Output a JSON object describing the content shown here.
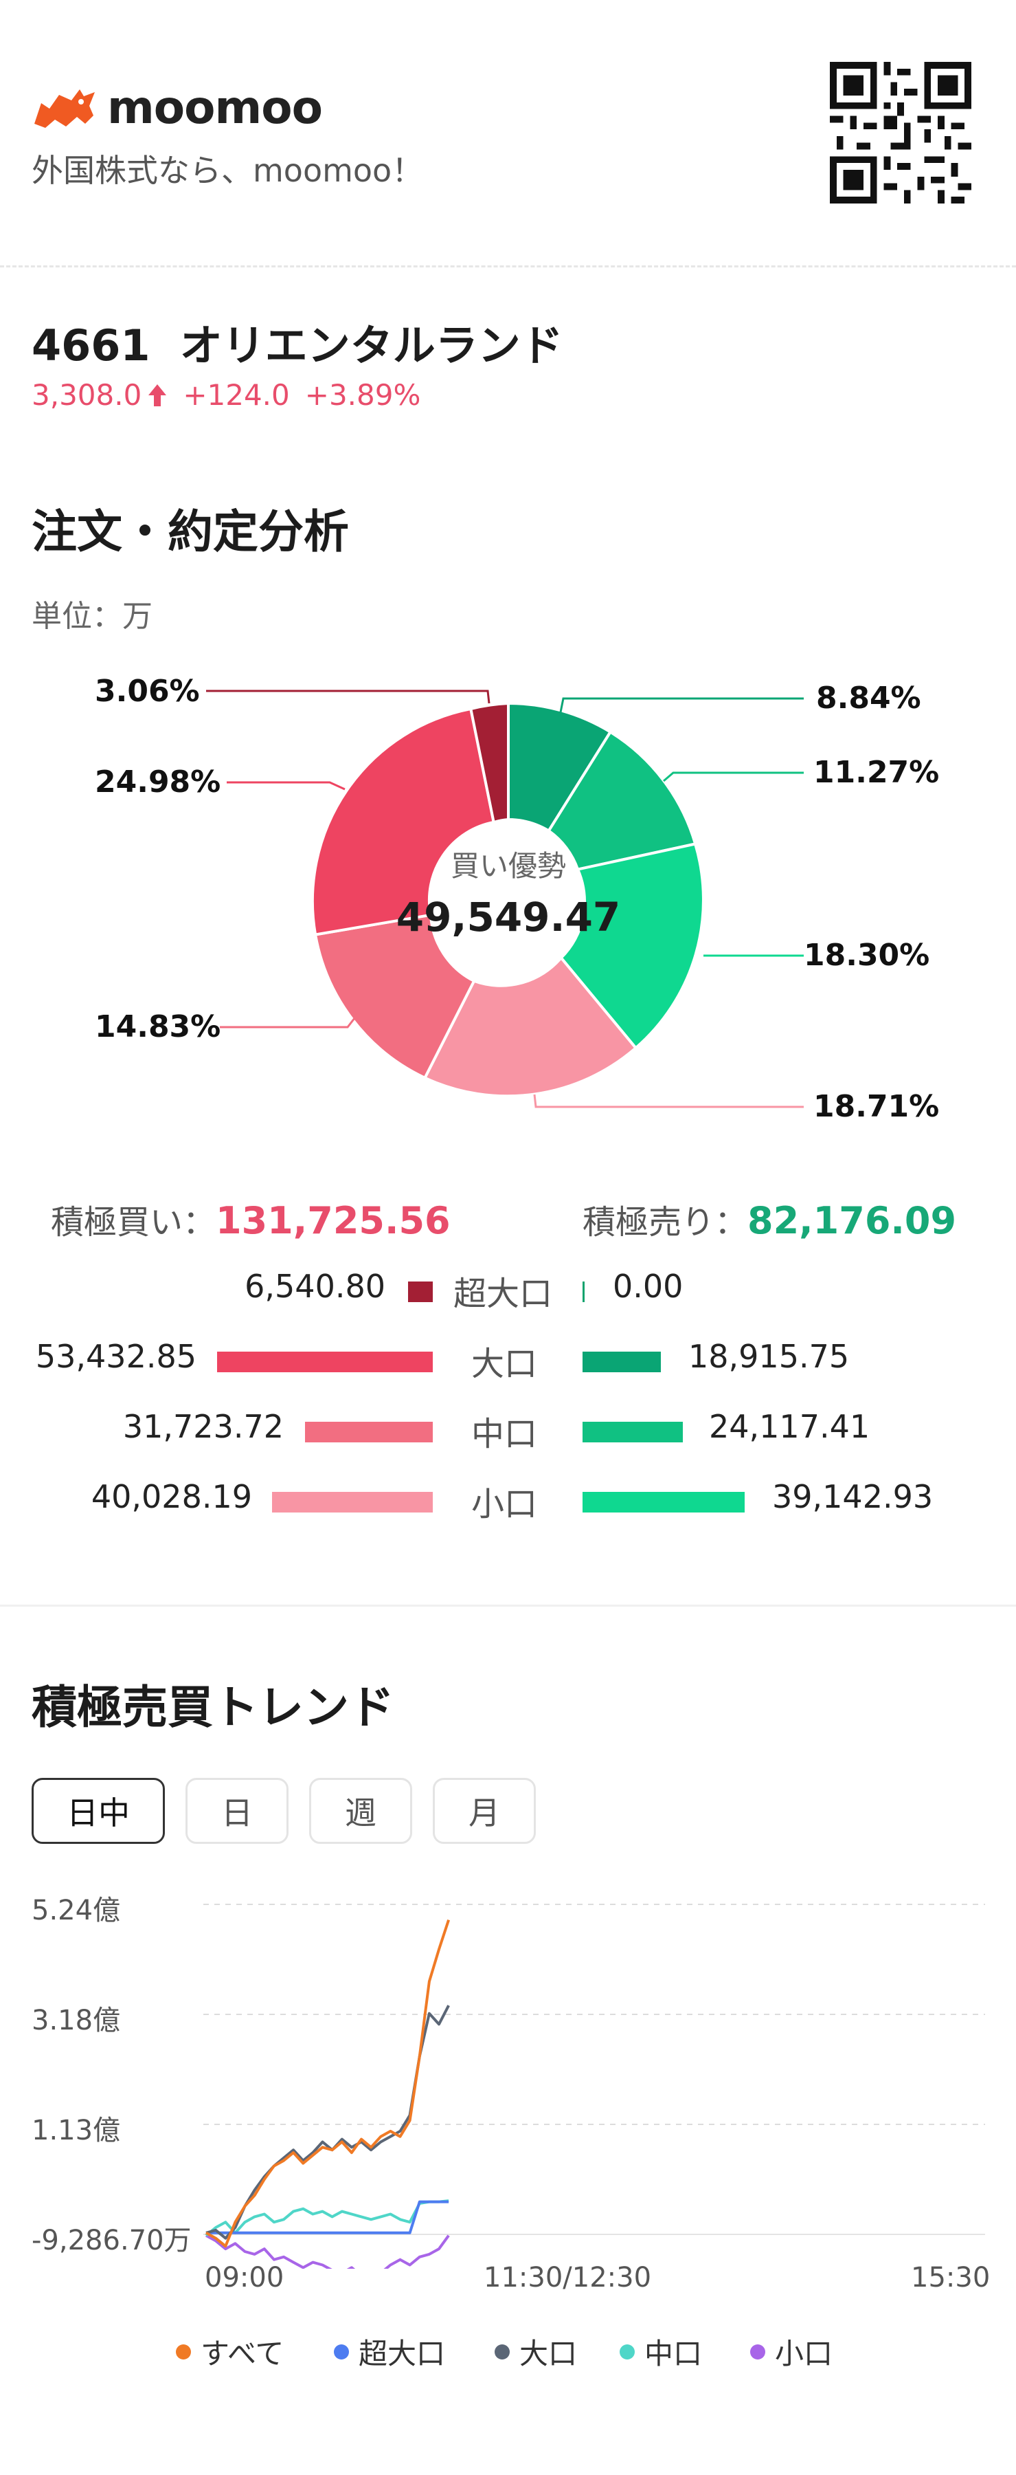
{
  "header": {
    "brand": "moomoo",
    "tagline": "外国株式なら、moomoo！"
  },
  "stock": {
    "code": "4661",
    "name": "オリエンタルランド",
    "price": "3,308.0",
    "change": "+124.0",
    "change_pct": "+3.89%"
  },
  "analysis": {
    "title": "注文・約定分析",
    "unit": "単位：万",
    "center_label": "買い優勢",
    "center_value": "49,549.47",
    "donut_labels": {
      "buy_super": "3.06%",
      "buy_large": "24.98%",
      "buy_medium": "14.83%",
      "buy_small": "18.71%",
      "sell_large": "8.84%",
      "sell_medium": "11.27%",
      "sell_small": "18.30%"
    },
    "buy_label": "積極買い：",
    "buy_total": "131,725.56",
    "sell_label": "積極売り：",
    "sell_total": "82,176.09",
    "rows": [
      {
        "category": "超大口",
        "buy": "6,540.80",
        "sell": "0.00"
      },
      {
        "category": "大口",
        "buy": "53,432.85",
        "sell": "18,915.75"
      },
      {
        "category": "中口",
        "buy": "31,723.72",
        "sell": "24,117.41"
      },
      {
        "category": "小口",
        "buy": "40,028.19",
        "sell": "39,142.93"
      }
    ]
  },
  "colors": {
    "buy_super": "#a31f34",
    "buy_large": "#ee4461",
    "buy_medium": "#f26e81",
    "buy_small": "#f895a4",
    "sell_super": "#11a36e",
    "sell_large": "#0aa574",
    "sell_medium": "#10c182",
    "sell_small": "#0fd890",
    "line_all": "#f07a25",
    "line_super": "#4d7cf0",
    "line_large": "#5b6676",
    "line_medium": "#4fd6c8",
    "line_small": "#a865e8"
  },
  "trend": {
    "title": "積極売買トレンド",
    "tabs": [
      "日中",
      "日",
      "週",
      "月"
    ],
    "active_tab": "日中"
  },
  "chart_data": {
    "type": "line",
    "y_tick_labels": [
      "5.24億",
      "3.18億",
      "1.13億",
      "-9,286.70万"
    ],
    "y_tick_values": [
      52400,
      31800,
      11300,
      -9286.7
    ],
    "x_tick_labels": [
      "09:00",
      "11:30/12:30",
      "15:30"
    ],
    "ylim": [
      -9286.7,
      52400
    ],
    "x": [
      0,
      5,
      10,
      15,
      20,
      25,
      30,
      35,
      40,
      45,
      50,
      55,
      60,
      65,
      70,
      75,
      80,
      85,
      90,
      95,
      100,
      105,
      110,
      115,
      120,
      125
    ],
    "series": [
      {
        "name": "すべて",
        "values": [
          -9000,
          -10000,
          -11500,
          -7000,
          -4000,
          -2000,
          1000,
          3500,
          4500,
          6000,
          4000,
          5500,
          7000,
          6500,
          8000,
          6000,
          8500,
          7000,
          9000,
          10000,
          9000,
          12000,
          24000,
          38000,
          44000,
          49500
        ]
      },
      {
        "name": "超大口",
        "values": [
          -9000,
          -9000,
          -9000,
          -9000,
          -9000,
          -9000,
          -9000,
          -9000,
          -9000,
          -9000,
          -9000,
          -9000,
          -9000,
          -9000,
          -9000,
          -9000,
          -9000,
          -9000,
          -9000,
          -9000,
          -9000,
          -9000,
          -3200,
          -3200,
          -3200,
          -3200
        ]
      },
      {
        "name": "大口",
        "values": [
          -9000,
          -8500,
          -10000,
          -8000,
          -4000,
          -1000,
          1500,
          3500,
          5000,
          6500,
          4500,
          6000,
          8000,
          6500,
          8500,
          7000,
          8000,
          6500,
          8000,
          9000,
          10000,
          13000,
          24000,
          32000,
          30000,
          33500
        ]
      },
      {
        "name": "中口",
        "values": [
          -9500,
          -8000,
          -7000,
          -9000,
          -7000,
          -6000,
          -5500,
          -7000,
          -6500,
          -5000,
          -4500,
          -5500,
          -5000,
          -6000,
          -5000,
          -5500,
          -6000,
          -6500,
          -6000,
          -5500,
          -6500,
          -7000,
          -3500,
          -3200,
          -3200,
          -3000
        ]
      },
      {
        "name": "小口",
        "values": [
          -9500,
          -10500,
          -12000,
          -11000,
          -12500,
          -13000,
          -12000,
          -14000,
          -13500,
          -14500,
          -15500,
          -14500,
          -15000,
          -16000,
          -16500,
          -15500,
          -17000,
          -16000,
          -16500,
          -15000,
          -14000,
          -15000,
          -13500,
          -13000,
          -12000,
          -9500
        ]
      }
    ],
    "legend": [
      "すべて",
      "超大口",
      "大口",
      "中口",
      "小口"
    ],
    "legend_placement": "bottom",
    "grid": true
  }
}
